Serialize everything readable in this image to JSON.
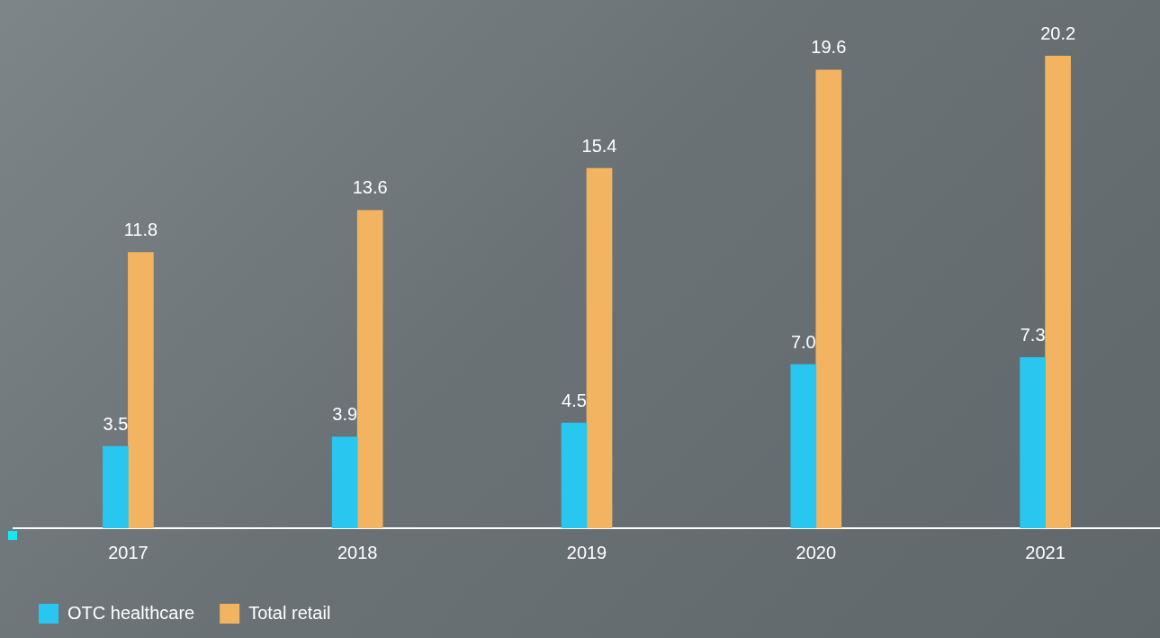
{
  "chart_data": {
    "type": "bar",
    "categories": [
      "2017",
      "2018",
      "2019",
      "2020",
      "2021"
    ],
    "series": [
      {
        "name": "OTC healthcare",
        "color": "#29c6f0",
        "values": [
          3.5,
          3.9,
          4.5,
          7.0,
          7.3
        ],
        "value_labels": [
          "3.5",
          "3.9",
          "4.5",
          "7.0",
          "7.3"
        ]
      },
      {
        "name": "Total retail",
        "color": "#f3b461",
        "values": [
          11.8,
          13.6,
          15.4,
          19.6,
          20.2
        ],
        "value_labels": [
          "11.8",
          "13.6",
          "15.4",
          "19.6",
          "20.2"
        ]
      }
    ],
    "ylim": [
      0,
      22.6
    ],
    "grid": false,
    "legend": "bottom-left",
    "data_labels": true,
    "tick_labels": "x"
  }
}
